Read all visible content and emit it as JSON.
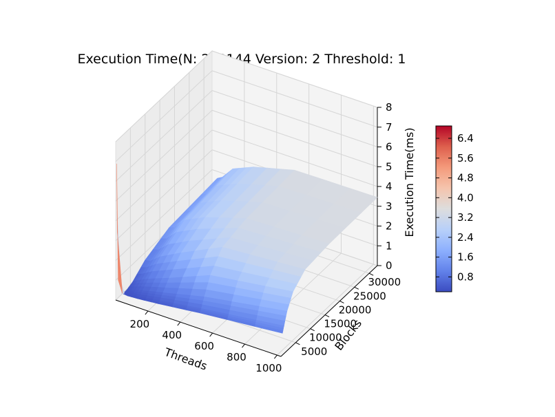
{
  "chart_data": {
    "type": "surface3d",
    "title": "Execution Time(N: 262144 Version: 2 Threshold: 1",
    "xlabel": "Threads",
    "ylabel": "Blocks",
    "zlabel": "Execution Time(ms)",
    "x_ticks": [
      "200",
      "400",
      "600",
      "800",
      "1000"
    ],
    "y_ticks": [
      "5000",
      "10000",
      "15000",
      "20000",
      "25000",
      "30000"
    ],
    "z_ticks": [
      "0",
      "1",
      "2",
      "3",
      "4",
      "5",
      "6",
      "7",
      "8"
    ],
    "colorbar_ticks": [
      "0.8",
      "1.6",
      "2.4",
      "3.2",
      "4.0",
      "4.8",
      "5.6",
      "6.4"
    ],
    "colormap": "coolwarm",
    "xlim": [
      0,
      1024
    ],
    "ylim": [
      0,
      32768
    ],
    "zlim": [
      0,
      8
    ],
    "color_range": [
      0.2,
      6.9
    ],
    "threads": [
      32,
      64,
      128,
      256,
      512,
      1024
    ],
    "blocks": [
      512,
      1024,
      2048,
      4096,
      8192,
      16384,
      32768
    ],
    "execution_time": [
      [
        0.35,
        0.3,
        0.32,
        0.45,
        0.95,
        1.45,
        1.65
      ],
      [
        0.32,
        0.32,
        0.4,
        0.6,
        1.0,
        1.55,
        1.8
      ],
      [
        0.35,
        0.38,
        0.55,
        0.85,
        1.4,
        2.1,
        2.4
      ],
      [
        0.45,
        0.55,
        0.8,
        1.25,
        1.95,
        2.6,
        2.85
      ],
      [
        0.7,
        0.85,
        1.3,
        2.1,
        2.95,
        3.25,
        3.4
      ],
      [
        1.1,
        1.4,
        2.0,
        2.7,
        3.25,
        3.4,
        3.45
      ]
    ],
    "spike_value": 6.9,
    "grid": true
  }
}
